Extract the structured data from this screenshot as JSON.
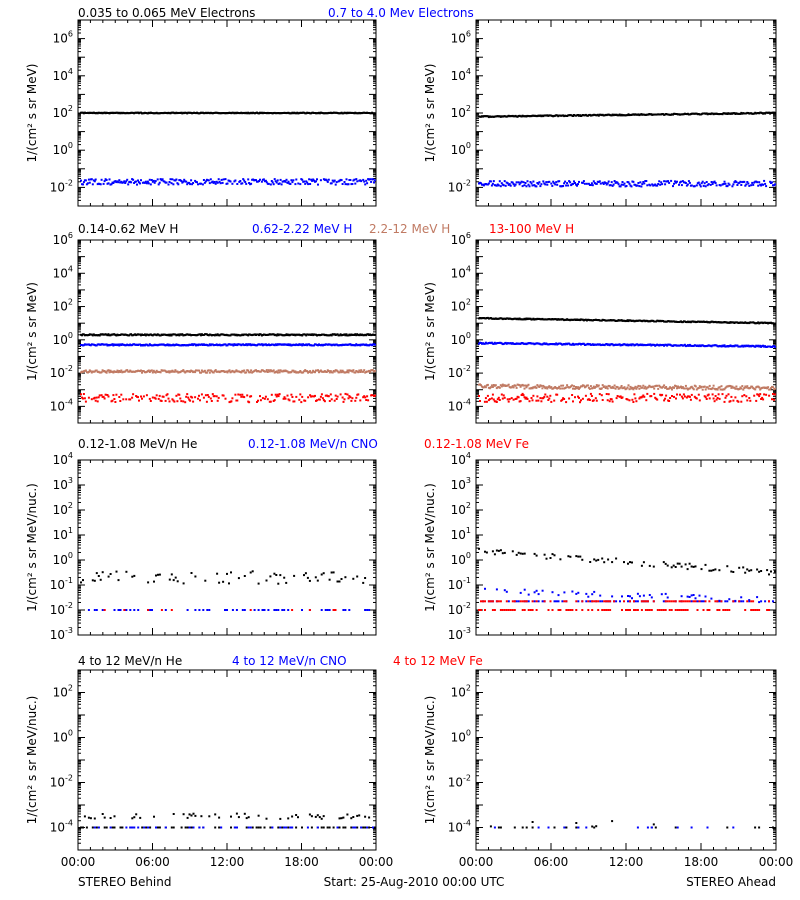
{
  "footer": {
    "left": "STEREO Behind",
    "center": "Start: 25-Aug-2010 00:00 UTC",
    "right": "STEREO Ahead"
  },
  "x_tick_labels": [
    "00:00",
    "06:00",
    "12:00",
    "18:00",
    "00:00"
  ],
  "colors": {
    "black": "#000000",
    "blue": "#0000ff",
    "tan": "#c07a63",
    "red": "#ff0000"
  },
  "chart_data": [
    {
      "type": "scatter",
      "row": 1,
      "spacecraft": "STEREO Behind",
      "ylabel": "1/(cm² s sr MeV)",
      "yscale": "log",
      "ylim_exp": [
        -3,
        7
      ],
      "tick_exps": [
        -2,
        0,
        2,
        4,
        6
      ],
      "legend": [
        {
          "text": "0.035 to 0.065 MeV Electrons",
          "color": "#000000"
        },
        {
          "text": "0.7 to 4.0 Mev Electrons",
          "color": "#0000ff"
        }
      ],
      "series": [
        {
          "color": "#000000",
          "log_start": 2.0,
          "log_end": 2.0,
          "noise": 0.02,
          "density": 1,
          "mode": "dense"
        },
        {
          "color": "#0000ff",
          "log_start": -1.7,
          "log_end": -1.7,
          "noise": 0.15,
          "density": 0.9,
          "mode": "dense"
        }
      ]
    },
    {
      "type": "scatter",
      "row": 1,
      "spacecraft": "STEREO Ahead",
      "ylabel": "1/(cm² s sr MeV)",
      "yscale": "log",
      "ylim_exp": [
        -3,
        7
      ],
      "tick_exps": [
        -2,
        0,
        2,
        4,
        6
      ],
      "legend": [],
      "series": [
        {
          "color": "#000000",
          "log_start": 1.8,
          "log_end": 2.0,
          "noise": 0.03,
          "density": 1,
          "mode": "dense"
        },
        {
          "color": "#0000ff",
          "log_start": -1.8,
          "log_end": -1.8,
          "noise": 0.15,
          "density": 0.9,
          "mode": "dense"
        }
      ]
    },
    {
      "type": "scatter",
      "row": 2,
      "spacecraft": "STEREO Behind",
      "ylabel": "1/(cm² s sr MeV)",
      "yscale": "log",
      "ylim_exp": [
        -5,
        6
      ],
      "tick_exps": [
        -4,
        -2,
        0,
        2,
        4,
        6
      ],
      "legend": [
        {
          "text": "0.14-0.62 MeV H",
          "color": "#000000"
        },
        {
          "text": "0.62-2.22 MeV H",
          "color": "#0000ff"
        },
        {
          "text": "2.2-12 MeV H",
          "color": "#c07a63"
        },
        {
          "text": "13-100 MeV H",
          "color": "#ff0000"
        }
      ],
      "series": [
        {
          "color": "#000000",
          "log_start": 0.3,
          "log_end": 0.3,
          "noise": 0.04,
          "density": 1,
          "mode": "dense"
        },
        {
          "color": "#0000ff",
          "log_start": -0.3,
          "log_end": -0.3,
          "noise": 0.04,
          "density": 1,
          "mode": "dense"
        },
        {
          "color": "#c07a63",
          "log_start": -1.9,
          "log_end": -1.9,
          "noise": 0.08,
          "density": 1,
          "mode": "dense"
        },
        {
          "color": "#ff0000",
          "log_start": -3.5,
          "log_end": -3.5,
          "noise": 0.25,
          "density": 0.7,
          "mode": "dense"
        }
      ]
    },
    {
      "type": "scatter",
      "row": 2,
      "spacecraft": "STEREO Ahead",
      "ylabel": "1/(cm² s sr MeV)",
      "yscale": "log",
      "ylim_exp": [
        -5,
        6
      ],
      "tick_exps": [
        -4,
        -2,
        0,
        2,
        4,
        6
      ],
      "legend": [],
      "series": [
        {
          "color": "#000000",
          "log_start": 1.3,
          "log_end": 1.0,
          "noise": 0.03,
          "density": 1,
          "mode": "dense"
        },
        {
          "color": "#0000ff",
          "log_start": -0.2,
          "log_end": -0.4,
          "noise": 0.04,
          "density": 1,
          "mode": "dense"
        },
        {
          "color": "#c07a63",
          "log_start": -2.8,
          "log_end": -2.9,
          "noise": 0.12,
          "density": 1,
          "mode": "dense"
        },
        {
          "color": "#ff0000",
          "log_start": -3.5,
          "log_end": -3.5,
          "noise": 0.25,
          "density": 0.7,
          "mode": "dense"
        }
      ]
    },
    {
      "type": "scatter",
      "row": 3,
      "spacecraft": "STEREO Behind",
      "ylabel": "1/(cm² s sr MeV/nuc.)",
      "yscale": "log",
      "ylim_exp": [
        -3,
        4
      ],
      "tick_exps": [
        -3,
        -2,
        -1,
        0,
        1,
        2,
        3,
        4
      ],
      "legend": [
        {
          "text": "0.12-1.08 MeV/n He",
          "color": "#000000"
        },
        {
          "text": "0.12-1.08 MeV/n CNO",
          "color": "#0000ff"
        },
        {
          "text": "0.12-1.08 MeV Fe",
          "color": "#ff0000"
        }
      ],
      "series": [
        {
          "color": "#000000",
          "log_start": -0.7,
          "log_end": -0.7,
          "noise": 0.25,
          "density": 0.5,
          "mode": "sparse"
        },
        {
          "color": "#0000ff",
          "log_start": -2.0,
          "log_end": -2.0,
          "noise": 0.0,
          "density": 0.35,
          "mode": "sparse"
        },
        {
          "color": "#ff0000",
          "log_start": -2.0,
          "log_end": -2.0,
          "noise": 0.0,
          "density": 0.08,
          "mode": "sparse"
        }
      ]
    },
    {
      "type": "scatter",
      "row": 3,
      "spacecraft": "STEREO Ahead",
      "ylabel": "1/(cm² s sr MeV/nuc.)",
      "yscale": "log",
      "ylim_exp": [
        -3,
        4
      ],
      "tick_exps": [
        -3,
        -2,
        -1,
        0,
        1,
        2,
        3,
        4
      ],
      "legend": [],
      "series": [
        {
          "color": "#000000",
          "log_start": 0.35,
          "log_end": -0.5,
          "noise": 0.12,
          "density": 0.6,
          "mode": "sparse"
        },
        {
          "color": "#0000ff",
          "log_start": -1.25,
          "log_end": -1.6,
          "noise": 0.12,
          "density": 0.35,
          "mode": "sparse"
        },
        {
          "color": "#0000ff",
          "log_start": -1.65,
          "log_end": -1.65,
          "noise": 0.0,
          "density": 0.45,
          "mode": "sparse"
        },
        {
          "color": "#ff0000",
          "log_start": -1.65,
          "log_end": -1.65,
          "noise": 0.0,
          "density": 0.45,
          "mode": "sparse"
        },
        {
          "color": "#ff0000",
          "log_start": -2.0,
          "log_end": -2.0,
          "noise": 0.0,
          "density": 0.6,
          "mode": "sparse"
        }
      ]
    },
    {
      "type": "scatter",
      "row": 4,
      "spacecraft": "STEREO Behind",
      "ylabel": "1/(cm² s sr MeV/nuc.)",
      "yscale": "log",
      "ylim_exp": [
        -5,
        3
      ],
      "tick_exps": [
        -4,
        -2,
        0,
        2
      ],
      "legend": [
        {
          "text": "4 to 12 MeV/n He",
          "color": "#000000"
        },
        {
          "text": "4 to 12 MeV/n CNO",
          "color": "#0000ff"
        },
        {
          "text": "4 to 12 MeV Fe",
          "color": "#ff0000"
        }
      ],
      "series": [
        {
          "color": "#000000",
          "log_start": -3.5,
          "log_end": -3.5,
          "noise": 0.12,
          "density": 0.35,
          "mode": "sparse"
        },
        {
          "color": "#000000",
          "log_start": -4.0,
          "log_end": -4.0,
          "noise": 0.0,
          "density": 0.5,
          "mode": "sparse"
        },
        {
          "color": "#0000ff",
          "log_start": -4.0,
          "log_end": -4.0,
          "noise": 0.0,
          "density": 0.25,
          "mode": "sparse"
        }
      ]
    },
    {
      "type": "scatter",
      "row": 4,
      "spacecraft": "STEREO Ahead",
      "ylabel": "1/(cm² s sr MeV/nuc.)",
      "yscale": "log",
      "ylim_exp": [
        -5,
        3
      ],
      "tick_exps": [
        -4,
        -2,
        0,
        2
      ],
      "legend": [],
      "series": [
        {
          "color": "#000000",
          "log_start": -3.8,
          "log_end": -3.8,
          "noise": 0.2,
          "density": 0.05,
          "mode": "sparse"
        },
        {
          "color": "#000000",
          "log_start": -4.0,
          "log_end": -4.0,
          "noise": 0.0,
          "density": 0.12,
          "mode": "sparse"
        },
        {
          "color": "#0000ff",
          "log_start": -4.0,
          "log_end": -4.0,
          "noise": 0.0,
          "density": 0.08,
          "mode": "sparse"
        }
      ]
    }
  ]
}
